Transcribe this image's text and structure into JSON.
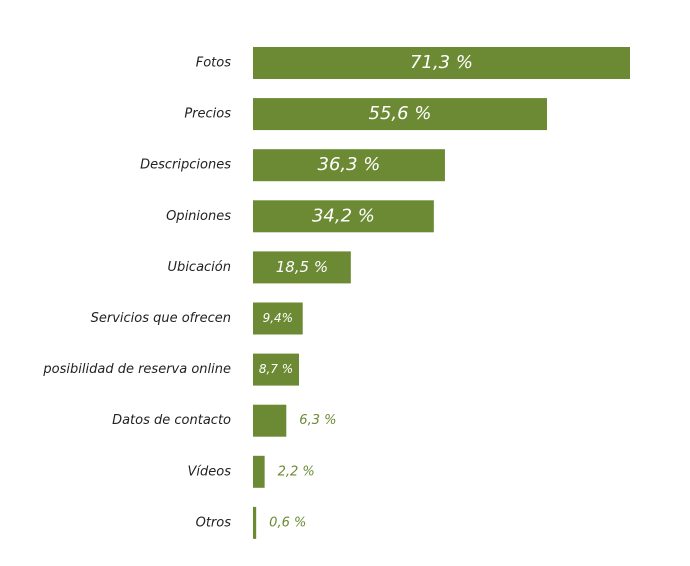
{
  "chart_data": {
    "type": "bar",
    "orientation": "horizontal",
    "color": "#6b8a33",
    "categories": [
      "Fotos",
      "Precios",
      "Descripciones",
      "Opiniones",
      "Ubicación",
      "Servicios que ofrecen",
      "posibilidad de reserva online",
      "Datos de contacto",
      "Vídeos",
      "Otros"
    ],
    "values": [
      71.3,
      55.6,
      36.3,
      34.2,
      18.5,
      9.4,
      8.7,
      6.3,
      2.2,
      0.6
    ],
    "value_labels": [
      "71,3 %",
      "55,6 %",
      "36,3 %",
      "34,2 %",
      "18,5 %",
      "9,4%",
      "8,7 %",
      "6,3 %",
      "2,2 %",
      "0,6 %"
    ]
  }
}
